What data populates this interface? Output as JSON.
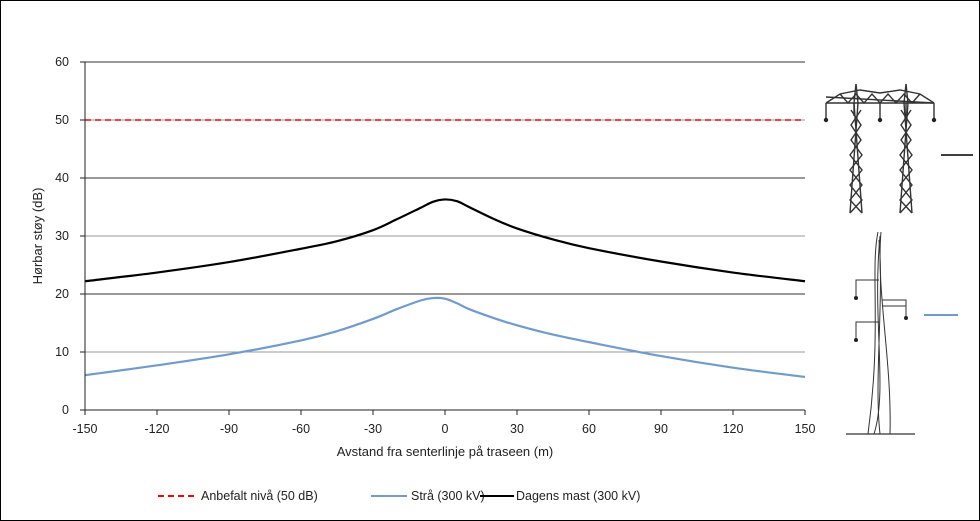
{
  "chart_data": {
    "type": "line",
    "title": "",
    "xlabel": "Avstand fra senterlinje på traseen (m)",
    "ylabel": "Hørbar støy (dB)",
    "xlim": [
      -150,
      150
    ],
    "ylim": [
      0,
      60
    ],
    "x_ticks": [
      -150,
      -120,
      -90,
      -60,
      -30,
      0,
      30,
      60,
      90,
      120,
      150
    ],
    "y_ticks": [
      0,
      10,
      20,
      30,
      40,
      50,
      60
    ],
    "grid": "horizontal",
    "legend_position": "bottom",
    "series": [
      {
        "name": "Anbefalt nivå (50 dB)",
        "color": "#ff0000",
        "style": "dashed",
        "x": [
          -150,
          150
        ],
        "y": [
          50,
          50
        ]
      },
      {
        "name": "Strå (300 kV)",
        "color": "#6f9bd1",
        "style": "solid",
        "x": [
          -150,
          -120,
          -90,
          -60,
          -45,
          -30,
          -20,
          -10,
          -5,
          0,
          5,
          10,
          20,
          30,
          45,
          60,
          90,
          120,
          150
        ],
        "y": [
          6.0,
          7.7,
          9.6,
          12.0,
          13.6,
          15.7,
          17.4,
          18.9,
          19.3,
          19.2,
          18.4,
          17.4,
          15.9,
          14.6,
          13.0,
          11.7,
          9.3,
          7.3,
          5.7
        ]
      },
      {
        "name": "Dagens mast (300 kV)",
        "color": "#000000",
        "style": "solid",
        "x": [
          -150,
          -120,
          -90,
          -60,
          -45,
          -30,
          -20,
          -10,
          -5,
          0,
          5,
          10,
          20,
          30,
          45,
          60,
          90,
          120,
          150
        ],
        "y": [
          22.2,
          23.7,
          25.5,
          27.8,
          29.1,
          31.0,
          32.9,
          34.9,
          35.9,
          36.3,
          36.0,
          35.0,
          33.0,
          31.3,
          29.4,
          27.9,
          25.6,
          23.7,
          22.2
        ]
      }
    ]
  }
}
